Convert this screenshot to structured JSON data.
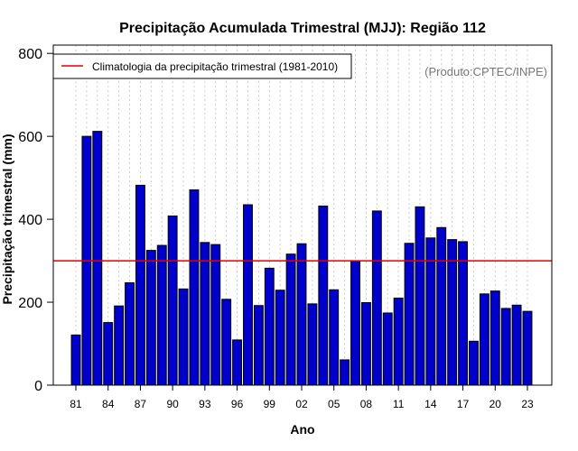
{
  "chart_data": {
    "type": "bar",
    "title": "Precipitação Acumulada Trimestral (MJJ): Região 112",
    "xlabel": "Ano",
    "ylabel": "Precipitação trimestral (mm)",
    "ylim": [
      0,
      820
    ],
    "yticks": [
      0,
      200,
      400,
      600,
      800
    ],
    "xtick_labels": [
      "81",
      "84",
      "87",
      "90",
      "93",
      "96",
      "99",
      "02",
      "05",
      "08",
      "11",
      "14",
      "17",
      "20",
      "23"
    ],
    "categories": [
      "1981",
      "1982",
      "1983",
      "1984",
      "1985",
      "1986",
      "1987",
      "1988",
      "1989",
      "1990",
      "1991",
      "1992",
      "1993",
      "1994",
      "1995",
      "1996",
      "1997",
      "1998",
      "1999",
      "2000",
      "2001",
      "2002",
      "2003",
      "2004",
      "2005",
      "2006",
      "2007",
      "2008",
      "2009",
      "2010",
      "2011",
      "2012",
      "2013",
      "2014",
      "2015",
      "2016",
      "2017",
      "2018",
      "2019",
      "2020",
      "2021",
      "2022",
      "2023"
    ],
    "values": [
      121,
      600,
      612,
      151,
      191,
      247,
      482,
      325,
      337,
      408,
      232,
      471,
      344,
      339,
      207,
      109,
      435,
      192,
      282,
      229,
      316,
      341,
      196,
      432,
      230,
      61,
      300,
      199,
      420,
      174,
      210,
      342,
      430,
      355,
      380,
      351,
      346,
      106,
      220,
      227,
      185,
      193,
      178
    ],
    "climatology": 300,
    "legend": "Climatologia da precipitação trimestral (1981-2010)",
    "legend_position": "top-left",
    "credit": "(Produto:CPTEC/INPE)",
    "grid": "vertical dotted",
    "colors": {
      "bar_fill": "#0000cd",
      "bar_edge": "#000000",
      "climatology_line": "#e00000",
      "grid": "#cccccc"
    }
  }
}
